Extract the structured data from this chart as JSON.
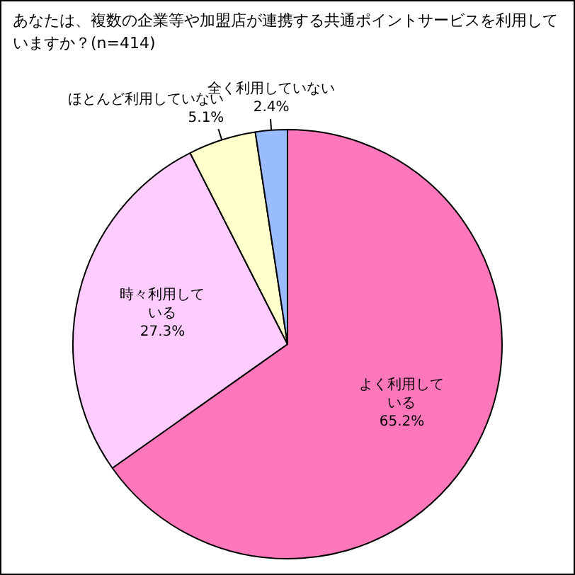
{
  "chart_data": {
    "type": "pie",
    "title": "あなたは、複数の企業等や加盟店が連携する共通ポイントサービスを利用していますか？(n=414)",
    "categories": [
      "よく利用している",
      "時々利用している",
      "ほとんど利用していない",
      "全く利用していない"
    ],
    "values": [
      65.2,
      27.3,
      5.1,
      2.4
    ],
    "colors": [
      "#ff77bb",
      "#ffccff",
      "#ffffcc",
      "#99bbff"
    ],
    "value_labels": [
      "65.2%",
      "27.3%",
      "5.1%",
      "2.4%"
    ],
    "legend": false
  }
}
